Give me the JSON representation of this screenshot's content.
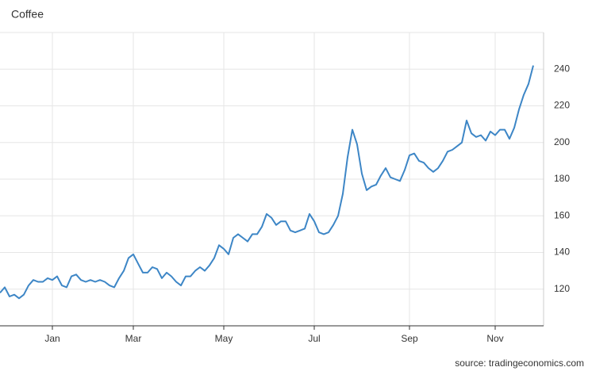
{
  "chart_data": {
    "type": "line",
    "title": "Coffee",
    "source": "source: tradingeconomics.com",
    "categories": [
      null,
      null,
      null,
      null,
      null,
      null,
      null,
      null,
      null,
      null,
      null,
      "Jan",
      null,
      null,
      null,
      null,
      null,
      null,
      null,
      null,
      null,
      null,
      null,
      null,
      null,
      null,
      null,
      null,
      "Mar",
      null,
      null,
      null,
      null,
      null,
      null,
      null,
      null,
      null,
      null,
      null,
      null,
      null,
      null,
      null,
      null,
      null,
      null,
      "May",
      null,
      null,
      null,
      null,
      null,
      null,
      null,
      null,
      null,
      null,
      null,
      null,
      null,
      null,
      null,
      null,
      null,
      null,
      "Jul",
      null,
      null,
      null,
      null,
      null,
      null,
      null,
      null,
      null,
      null,
      null,
      null,
      null,
      null,
      null,
      null,
      null,
      null,
      null,
      "Sep",
      null,
      null,
      null,
      null,
      null,
      null,
      null,
      null,
      null,
      null,
      null,
      null,
      null,
      null,
      null,
      null,
      null,
      "Nov",
      null,
      null,
      null,
      null,
      null,
      null,
      null,
      null
    ],
    "series": [
      {
        "color": "#3d86c6",
        "values": [
          118,
          121,
          116,
          117,
          115,
          117,
          122,
          125,
          124,
          124,
          126,
          125,
          127,
          122,
          121,
          127,
          128,
          125,
          124,
          125,
          124,
          125,
          124,
          122,
          121,
          126,
          130,
          137,
          139,
          134,
          129,
          129,
          132,
          131,
          126,
          129,
          127,
          124,
          122,
          127,
          127,
          130,
          132,
          130,
          133,
          137,
          144,
          142,
          139,
          148,
          150,
          148,
          146,
          150,
          150,
          154,
          161,
          159,
          155,
          157,
          157,
          152,
          151,
          152,
          153,
          161,
          157,
          151,
          150,
          151,
          155,
          160,
          172,
          192,
          207,
          199,
          183,
          174,
          176,
          177,
          182,
          186,
          181,
          180,
          179,
          185,
          193,
          194,
          190,
          189,
          186,
          184,
          186,
          190,
          195,
          196,
          198,
          200,
          212,
          205,
          203,
          204,
          201,
          206,
          204,
          207,
          207,
          202,
          208,
          218,
          226,
          232,
          242
        ]
      }
    ],
    "ylim": [
      100,
      260
    ],
    "yticks": [
      120,
      140,
      160,
      180,
      200,
      220,
      240
    ],
    "grid": true
  }
}
